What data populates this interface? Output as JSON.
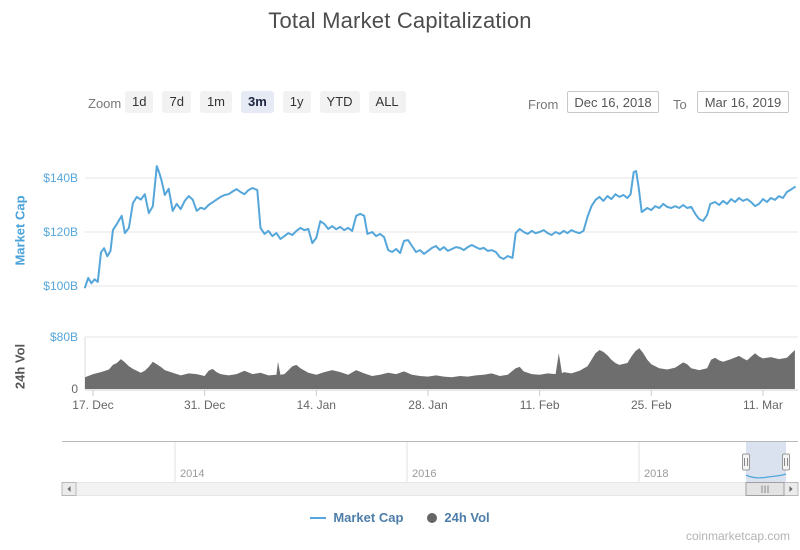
{
  "title": "Total Market Capitalization",
  "toolbar": {
    "zoom_label": "Zoom",
    "range_buttons": [
      "1d",
      "7d",
      "1m",
      "3m",
      "1y",
      "YTD",
      "ALL"
    ],
    "selected_range": "3m",
    "from_label": "From",
    "from_value": "Dec 16, 2018",
    "to_label": "To",
    "to_value": "Mar 16, 2019"
  },
  "chart_data": [
    {
      "type": "line",
      "name": "Market Cap",
      "axis_title": "Market Cap",
      "color": "#55a6da",
      "x_unit": "days since Dec 16, 2018",
      "xlim": [
        0,
        89
      ],
      "ylim": [
        95,
        155
      ],
      "grid": true,
      "yticks": [
        {
          "value": 100,
          "label": "$100B"
        },
        {
          "value": 120,
          "label": "$120B"
        },
        {
          "value": 140,
          "label": "$140B"
        }
      ],
      "xticks": [
        {
          "day": 1,
          "label": "17. Dec"
        },
        {
          "day": 15,
          "label": "31. Dec"
        },
        {
          "day": 29,
          "label": "14. Jan"
        },
        {
          "day": 43,
          "label": "28. Jan"
        },
        {
          "day": 57,
          "label": "11. Feb"
        },
        {
          "day": 71,
          "label": "25. Feb"
        },
        {
          "day": 85,
          "label": "11. Mar"
        }
      ],
      "points": [
        [
          0,
          99.5
        ],
        [
          0.4,
          103
        ],
        [
          0.8,
          101
        ],
        [
          1.2,
          102.5
        ],
        [
          1.6,
          101.5
        ],
        [
          2,
          112.5
        ],
        [
          2.4,
          114
        ],
        [
          2.8,
          111
        ],
        [
          3.2,
          113
        ],
        [
          3.5,
          120.7
        ],
        [
          4,
          123
        ],
        [
          4.6,
          126
        ],
        [
          5,
          119.6
        ],
        [
          5.5,
          121.5
        ],
        [
          6,
          130.7
        ],
        [
          6.5,
          133
        ],
        [
          7,
          132
        ],
        [
          7.5,
          134
        ],
        [
          8,
          127
        ],
        [
          8.5,
          129.5
        ],
        [
          9,
          144.4
        ],
        [
          9.3,
          142
        ],
        [
          9.6,
          139
        ],
        [
          10,
          133.7
        ],
        [
          10.5,
          136
        ],
        [
          11,
          127.8
        ],
        [
          11.5,
          130.4
        ],
        [
          12,
          128.5
        ],
        [
          12.5,
          131.5
        ],
        [
          13,
          133.3
        ],
        [
          13.5,
          132
        ],
        [
          14,
          127.8
        ],
        [
          14.5,
          129
        ],
        [
          15,
          128.5
        ],
        [
          15.5,
          130
        ],
        [
          16,
          131
        ],
        [
          16.5,
          132
        ],
        [
          17,
          133
        ],
        [
          17.5,
          133.7
        ],
        [
          18,
          134
        ],
        [
          18.5,
          135
        ],
        [
          19,
          135.9
        ],
        [
          19.5,
          134.8
        ],
        [
          20,
          134
        ],
        [
          20.5,
          135.5
        ],
        [
          21,
          136.3
        ],
        [
          21.6,
          135.5
        ],
        [
          22,
          121.5
        ],
        [
          22.5,
          119.3
        ],
        [
          23,
          120.4
        ],
        [
          23.5,
          118.5
        ],
        [
          24,
          119.6
        ],
        [
          24.5,
          117.4
        ],
        [
          25,
          118.5
        ],
        [
          25.5,
          119.6
        ],
        [
          26,
          118.9
        ],
        [
          26.5,
          120.4
        ],
        [
          27,
          121.5
        ],
        [
          27.5,
          120.7
        ],
        [
          28,
          121.1
        ],
        [
          28.5,
          115.9
        ],
        [
          29,
          117.8
        ],
        [
          29.5,
          124
        ],
        [
          30,
          123
        ],
        [
          30.5,
          121.1
        ],
        [
          31,
          122.2
        ],
        [
          31.5,
          121
        ],
        [
          32,
          121.9
        ],
        [
          32.5,
          120.7
        ],
        [
          33,
          121.5
        ],
        [
          33.5,
          120.4
        ],
        [
          34,
          126
        ],
        [
          34.5,
          126.7
        ],
        [
          35,
          126
        ],
        [
          35.4,
          119.3
        ],
        [
          36,
          120
        ],
        [
          36.5,
          118.5
        ],
        [
          37,
          119.3
        ],
        [
          37.5,
          118.1
        ],
        [
          38,
          113.3
        ],
        [
          38.5,
          112.6
        ],
        [
          39,
          113.7
        ],
        [
          39.5,
          112.2
        ],
        [
          40,
          116.7
        ],
        [
          40.5,
          117
        ],
        [
          41,
          114.8
        ],
        [
          41.5,
          112.6
        ],
        [
          42,
          113.3
        ],
        [
          42.5,
          111.9
        ],
        [
          43,
          113
        ],
        [
          43.5,
          114.1
        ],
        [
          44,
          114.8
        ],
        [
          44.5,
          113.3
        ],
        [
          45,
          114.4
        ],
        [
          45.5,
          113
        ],
        [
          46,
          113.7
        ],
        [
          46.5,
          114.4
        ],
        [
          47,
          114.1
        ],
        [
          47.5,
          113.3
        ],
        [
          48,
          114.4
        ],
        [
          48.5,
          115.2
        ],
        [
          49,
          114.4
        ],
        [
          49.5,
          113.7
        ],
        [
          50,
          114.1
        ],
        [
          50.5,
          113
        ],
        [
          51,
          113.3
        ],
        [
          51.5,
          112.6
        ],
        [
          52,
          110.7
        ],
        [
          52.5,
          110
        ],
        [
          53,
          111.1
        ],
        [
          53.6,
          110.4
        ],
        [
          54,
          119.6
        ],
        [
          54.5,
          121.1
        ],
        [
          55,
          120
        ],
        [
          55.5,
          119.3
        ],
        [
          56,
          120.4
        ],
        [
          56.5,
          119.6
        ],
        [
          57,
          120
        ],
        [
          57.5,
          120.7
        ],
        [
          58,
          119.6
        ],
        [
          58.5,
          118.9
        ],
        [
          59,
          120
        ],
        [
          59.5,
          119.3
        ],
        [
          60,
          120.4
        ],
        [
          60.5,
          119.6
        ],
        [
          61,
          120.7
        ],
        [
          61.5,
          120
        ],
        [
          62,
          119.6
        ],
        [
          62.5,
          120.4
        ],
        [
          63,
          125.6
        ],
        [
          63.5,
          129.6
        ],
        [
          64,
          131.9
        ],
        [
          64.5,
          133
        ],
        [
          65,
          131.5
        ],
        [
          65.5,
          133.3
        ],
        [
          66,
          132.2
        ],
        [
          66.5,
          134
        ],
        [
          67,
          133
        ],
        [
          67.5,
          133.7
        ],
        [
          68,
          132.6
        ],
        [
          68.4,
          134
        ],
        [
          68.8,
          142.2
        ],
        [
          69.1,
          142.6
        ],
        [
          69.4,
          137
        ],
        [
          69.8,
          127.4
        ],
        [
          70.5,
          128.9
        ],
        [
          71,
          128.1
        ],
        [
          71.5,
          129.6
        ],
        [
          72,
          128.9
        ],
        [
          72.5,
          130.4
        ],
        [
          73,
          129.3
        ],
        [
          73.5,
          128.9
        ],
        [
          74,
          129.6
        ],
        [
          74.5,
          128.9
        ],
        [
          75,
          130
        ],
        [
          75.5,
          128.9
        ],
        [
          76,
          129.3
        ],
        [
          76.6,
          126.3
        ],
        [
          77,
          124.8
        ],
        [
          77.5,
          124.1
        ],
        [
          78,
          126.3
        ],
        [
          78.4,
          130.4
        ],
        [
          79,
          131.1
        ],
        [
          79.5,
          130
        ],
        [
          80,
          131.5
        ],
        [
          80.5,
          130.4
        ],
        [
          81,
          132.2
        ],
        [
          81.5,
          131.1
        ],
        [
          82,
          132.6
        ],
        [
          82.5,
          131.5
        ],
        [
          83,
          132.2
        ],
        [
          83.5,
          131.1
        ],
        [
          84,
          129.6
        ],
        [
          84.5,
          130.4
        ],
        [
          85,
          132.2
        ],
        [
          85.5,
          131.1
        ],
        [
          86,
          132.6
        ],
        [
          86.5,
          131.9
        ],
        [
          87,
          133.3
        ],
        [
          87.5,
          132.6
        ],
        [
          88,
          134.8
        ],
        [
          88.6,
          135.9
        ],
        [
          89,
          136.7
        ]
      ]
    },
    {
      "type": "area",
      "name": "24h Vol",
      "axis_title": "24h Vol",
      "color": "#6e6e6e",
      "x_unit": "days since Dec 16, 2018",
      "xlim": [
        0,
        89
      ],
      "ylim": [
        0,
        90
      ],
      "yticks": [
        {
          "value": 0,
          "label": "0"
        },
        {
          "value": 80,
          "label": "$80B"
        }
      ],
      "points": [
        [
          0,
          18
        ],
        [
          1,
          23
        ],
        [
          2,
          26
        ],
        [
          3,
          30
        ],
        [
          3.5,
          37
        ],
        [
          4,
          40
        ],
        [
          4.5,
          46
        ],
        [
          5,
          41
        ],
        [
          5.5,
          35
        ],
        [
          6,
          31
        ],
        [
          7,
          25
        ],
        [
          7.5,
          28
        ],
        [
          8,
          34
        ],
        [
          8.5,
          42
        ],
        [
          9,
          38
        ],
        [
          9.5,
          34
        ],
        [
          10,
          29
        ],
        [
          11,
          25
        ],
        [
          12,
          21
        ],
        [
          13,
          24
        ],
        [
          14,
          23
        ],
        [
          15,
          20
        ],
        [
          15.5,
          28
        ],
        [
          16,
          31
        ],
        [
          16.5,
          26
        ],
        [
          17,
          23
        ],
        [
          18,
          21
        ],
        [
          19,
          23
        ],
        [
          20,
          28
        ],
        [
          21,
          23
        ],
        [
          22,
          25
        ],
        [
          23,
          21
        ],
        [
          24,
          22
        ],
        [
          24.2,
          42
        ],
        [
          24.5,
          22
        ],
        [
          25,
          23
        ],
        [
          26,
          35
        ],
        [
          26.5,
          37
        ],
        [
          27,
          32
        ],
        [
          28,
          25
        ],
        [
          29,
          22
        ],
        [
          30,
          26
        ],
        [
          31,
          29
        ],
        [
          32,
          26
        ],
        [
          33,
          22
        ],
        [
          34,
          29
        ],
        [
          35,
          24
        ],
        [
          36,
          20
        ],
        [
          37,
          22
        ],
        [
          38,
          25
        ],
        [
          39,
          23
        ],
        [
          40,
          27
        ],
        [
          41,
          22
        ],
        [
          42,
          20
        ],
        [
          43,
          19
        ],
        [
          44,
          21
        ],
        [
          45,
          19
        ],
        [
          46,
          18
        ],
        [
          47,
          20
        ],
        [
          48,
          19
        ],
        [
          49,
          21
        ],
        [
          50,
          22
        ],
        [
          51,
          24
        ],
        [
          52,
          20
        ],
        [
          53,
          22
        ],
        [
          54,
          32
        ],
        [
          54.5,
          34
        ],
        [
          55,
          27
        ],
        [
          56,
          23
        ],
        [
          57,
          22
        ],
        [
          58,
          24
        ],
        [
          59,
          23
        ],
        [
          59.4,
          55
        ],
        [
          59.8,
          24
        ],
        [
          60,
          26
        ],
        [
          61,
          24
        ],
        [
          62,
          28
        ],
        [
          63,
          35
        ],
        [
          63.5,
          45
        ],
        [
          64,
          55
        ],
        [
          64.5,
          60
        ],
        [
          65,
          57
        ],
        [
          65.5,
          52
        ],
        [
          66,
          45
        ],
        [
          66.5,
          40
        ],
        [
          67,
          37
        ],
        [
          68,
          40
        ],
        [
          68.5,
          50
        ],
        [
          69,
          58
        ],
        [
          69.5,
          63
        ],
        [
          70,
          55
        ],
        [
          70.5,
          45
        ],
        [
          71,
          38
        ],
        [
          72,
          32
        ],
        [
          73,
          30
        ],
        [
          74,
          33
        ],
        [
          75,
          41
        ],
        [
          75.5,
          38
        ],
        [
          76,
          32
        ],
        [
          77,
          29
        ],
        [
          78,
          32
        ],
        [
          78.5,
          45
        ],
        [
          79,
          48
        ],
        [
          79.5,
          44
        ],
        [
          80,
          42
        ],
        [
          81,
          46
        ],
        [
          82,
          51
        ],
        [
          82.5,
          47
        ],
        [
          83,
          44
        ],
        [
          84,
          55
        ],
        [
          84.5,
          50
        ],
        [
          85,
          47
        ],
        [
          86,
          49
        ],
        [
          87,
          46
        ],
        [
          88,
          48
        ],
        [
          88.5,
          54
        ],
        [
          89,
          60
        ]
      ]
    }
  ],
  "navigator": {
    "year_labels": [
      "2014",
      "2016",
      "2018"
    ]
  },
  "legend": {
    "items": [
      {
        "label": "Market Cap",
        "marker": "line",
        "color": "#55a6da"
      },
      {
        "label": "24h Vol",
        "marker": "circle",
        "color": "#666666"
      }
    ]
  },
  "watermark": "coinmarketcap.com"
}
